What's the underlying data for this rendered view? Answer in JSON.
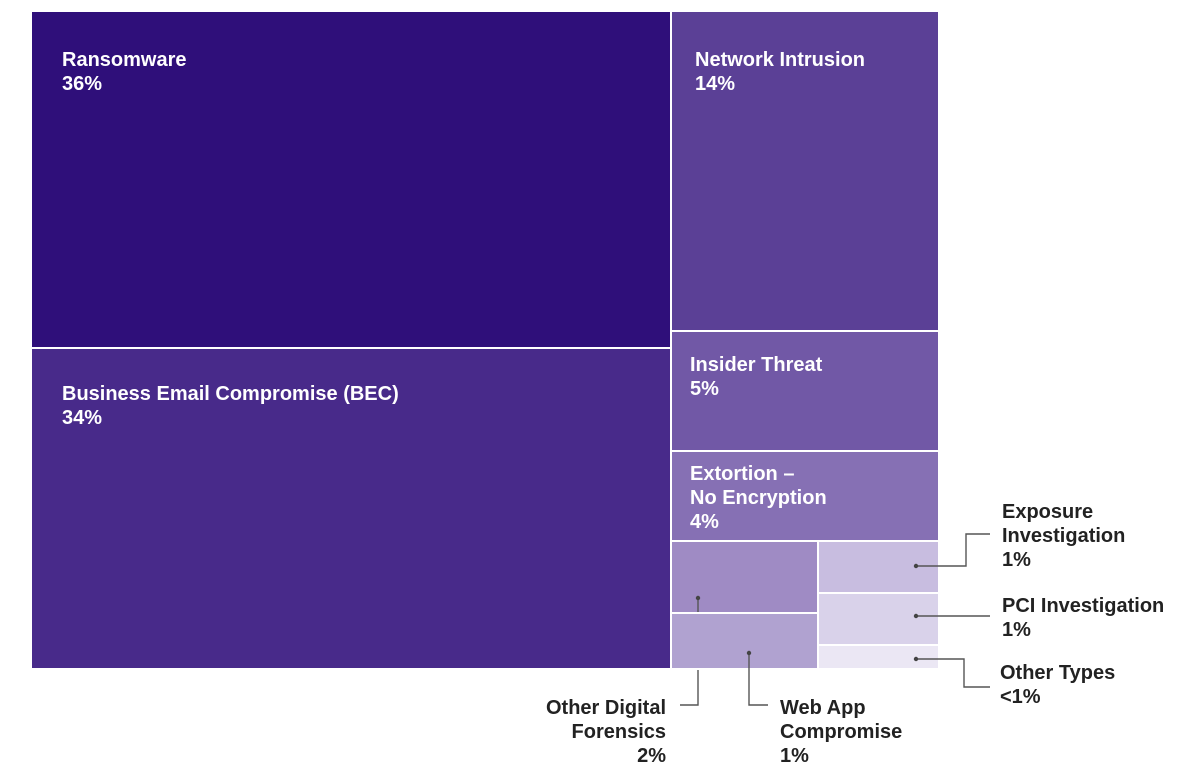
{
  "chart_data": {
    "type": "treemap",
    "unit": "%",
    "categories": [
      {
        "name": "Ransomware",
        "value": 36,
        "display": "36%",
        "color": "#2f0f7a"
      },
      {
        "name": "Business Email Compromise (BEC)",
        "value": 34,
        "display": "34%",
        "color": "#482a8a"
      },
      {
        "name": "Network Intrusion",
        "value": 14,
        "display": "14%",
        "color": "#5b4096"
      },
      {
        "name": "Insider Threat",
        "value": 5,
        "display": "5%",
        "color": "#7158a6"
      },
      {
        "name": "Extortion – No Encryption",
        "value": 4,
        "display": "4%",
        "color": "#8670b4"
      },
      {
        "name": "Other Digital Forensics",
        "value": 2,
        "display": "2%",
        "color": "#9f8bc4"
      },
      {
        "name": "Web App Compromise",
        "value": 1,
        "display": "1%",
        "color": "#b0a2d0"
      },
      {
        "name": "Exposure Investigation",
        "value": 1,
        "display": "1%",
        "color": "#c8bde0"
      },
      {
        "name": "PCI Investigation",
        "value": 1,
        "display": "1%",
        "color": "#d9d2ea"
      },
      {
        "name": "Other Types",
        "value": 0.5,
        "display": "<1%",
        "color": "#ebe7f4"
      }
    ]
  }
}
